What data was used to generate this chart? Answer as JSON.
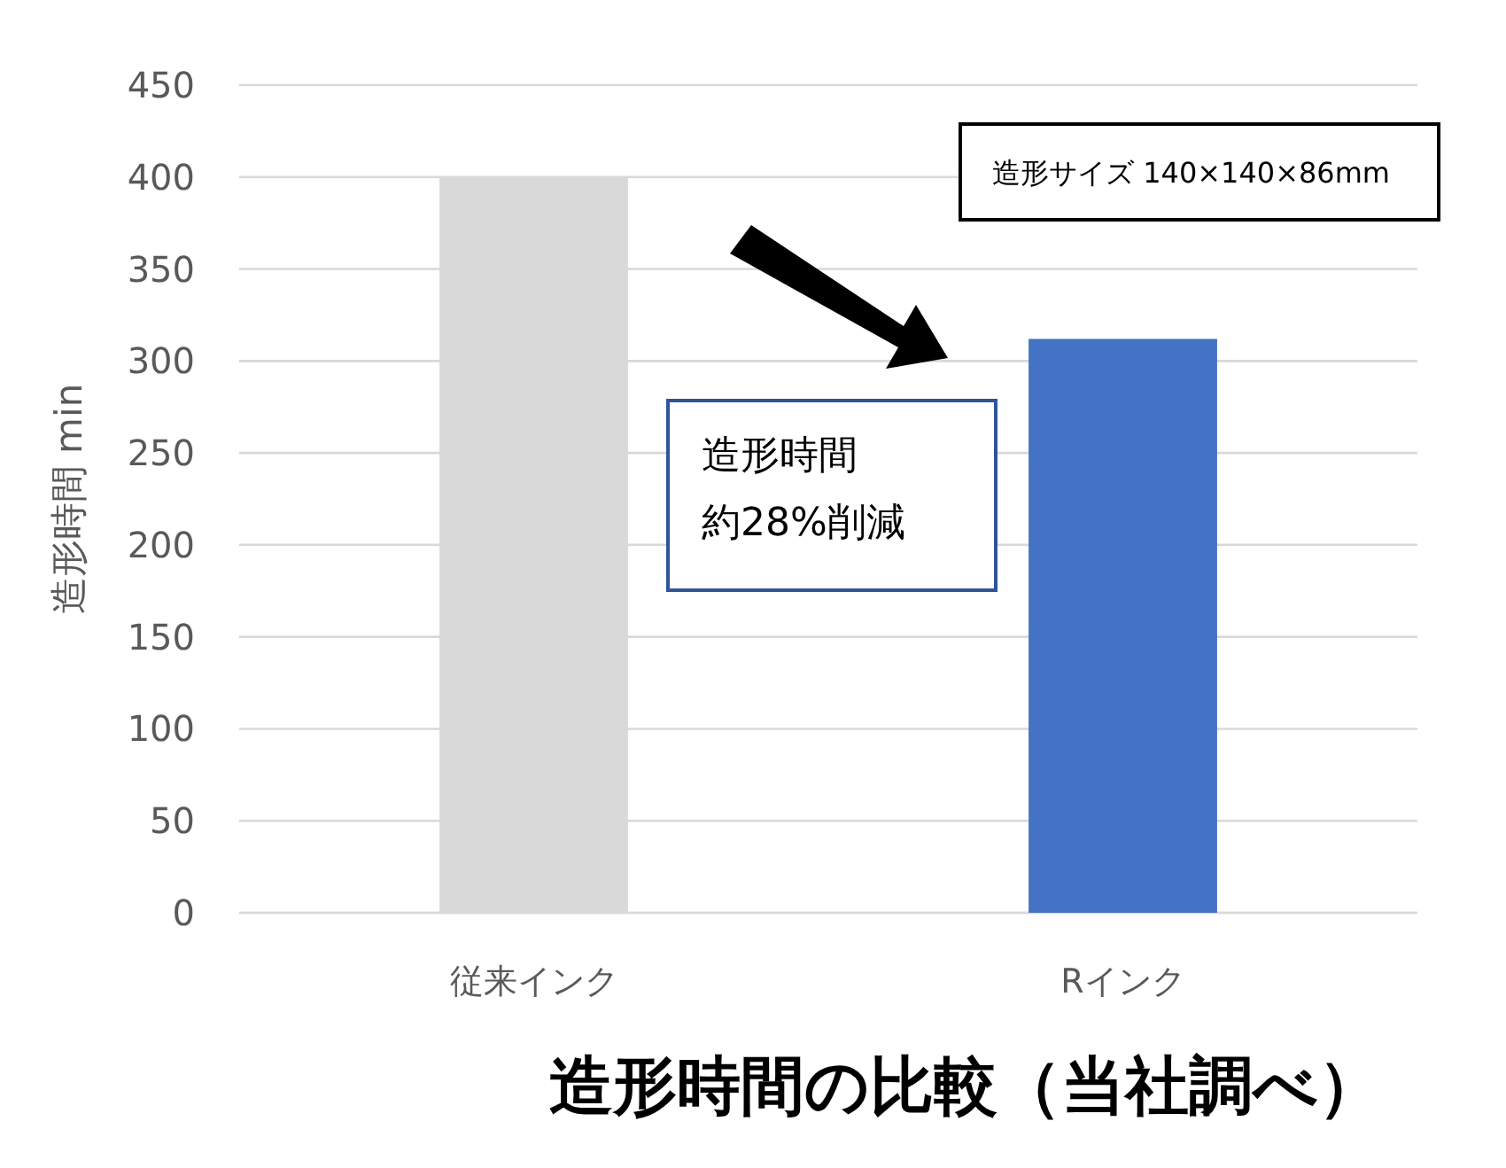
{
  "chart_data": {
    "type": "bar",
    "title": "造形時間の比較（当社調べ）",
    "ylabel": "造形時間 min",
    "categories": [
      "従来インク",
      "Rインク"
    ],
    "series": [
      {
        "colors": [
          "#d9d9d9",
          "#4472c4"
        ],
        "values": [
          400,
          312
        ]
      }
    ],
    "ylim": [
      0,
      450
    ],
    "yticks": [
      0,
      50,
      100,
      150,
      200,
      250,
      300,
      350,
      400,
      450
    ],
    "grid": "y",
    "annotations": [
      "造形サイズ 140×140×86mm",
      "造形時間",
      "約28%削減"
    ]
  }
}
